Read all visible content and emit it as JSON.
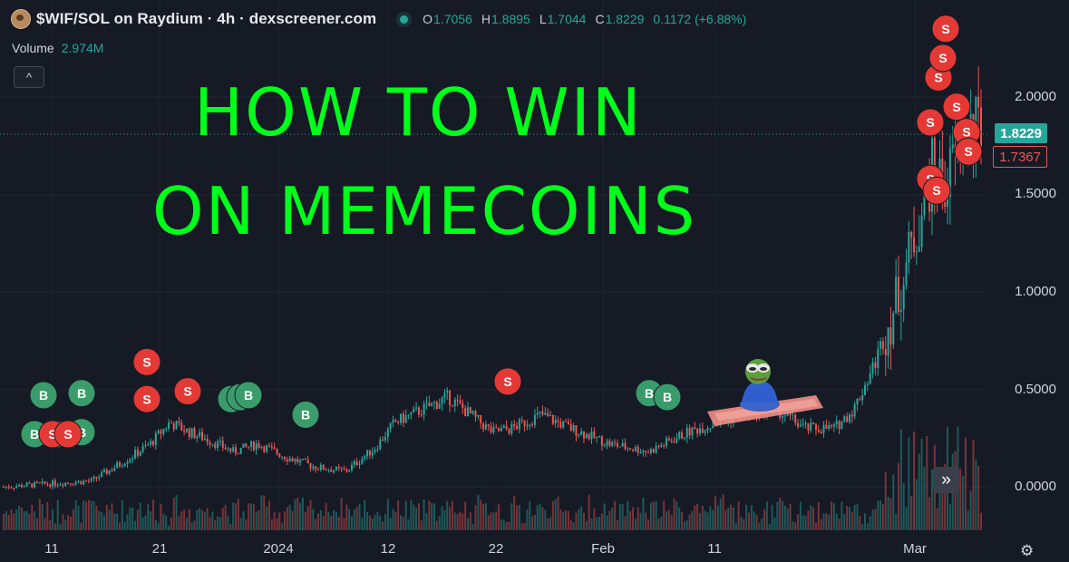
{
  "header": {
    "pair_title": "$WIF/SOL on Raydium · 4h · dexscreener.com",
    "ohlc": [
      {
        "key": "O",
        "value": "1.7056"
      },
      {
        "key": "H",
        "value": "1.8895"
      },
      {
        "key": "L",
        "value": "1.7044"
      },
      {
        "key": "C",
        "value": "1.8229"
      }
    ],
    "change": "0.1172 (+6.88%)",
    "volume_label": "Volume",
    "volume_value": "2.974M",
    "collapse_icon": "^"
  },
  "overlay_text": {
    "line1": "HOW TO WIN",
    "line2": "ON MEMECOINS"
  },
  "price_tags": {
    "last": "1.8229",
    "marker": "1.7367"
  },
  "controls": {
    "scroll_to_latest_icon": "»",
    "settings_icon": "⚙"
  },
  "colors": {
    "background": "#161a25",
    "up": "#26a69a",
    "down": "#ef5350",
    "headline": "#00ff1a",
    "buy_marker": "#3a9c6a",
    "sell_marker": "#e53935"
  },
  "chart_data": {
    "type": "candlestick",
    "title": "$WIF/SOL on Raydium · 4h · dexscreener.com",
    "interval": "4h",
    "y_ticks": [
      "2.0000",
      "1.5000",
      "1.0000",
      "0.5000",
      "0.0000"
    ],
    "x_ticks": [
      "11",
      "21",
      "2024",
      "12",
      "22",
      "Feb",
      "11",
      "Mar"
    ],
    "ylim": [
      -0.1,
      2.45
    ],
    "last_price": 1.8229,
    "grid": true,
    "price_path": [
      {
        "t": 0.0,
        "p": 0.0
      },
      {
        "t": 0.06,
        "p": 0.02
      },
      {
        "t": 0.09,
        "p": 0.03
      },
      {
        "t": 0.12,
        "p": 0.12
      },
      {
        "t": 0.15,
        "p": 0.22
      },
      {
        "t": 0.17,
        "p": 0.33
      },
      {
        "t": 0.19,
        "p": 0.28
      },
      {
        "t": 0.21,
        "p": 0.24
      },
      {
        "t": 0.235,
        "p": 0.18
      },
      {
        "t": 0.26,
        "p": 0.22
      },
      {
        "t": 0.29,
        "p": 0.15
      },
      {
        "t": 0.32,
        "p": 0.1
      },
      {
        "t": 0.35,
        "p": 0.08
      },
      {
        "t": 0.38,
        "p": 0.2
      },
      {
        "t": 0.4,
        "p": 0.33
      },
      {
        "t": 0.43,
        "p": 0.4
      },
      {
        "t": 0.455,
        "p": 0.46
      },
      {
        "t": 0.47,
        "p": 0.4
      },
      {
        "t": 0.5,
        "p": 0.28
      },
      {
        "t": 0.52,
        "p": 0.3
      },
      {
        "t": 0.55,
        "p": 0.37
      },
      {
        "t": 0.58,
        "p": 0.3
      },
      {
        "t": 0.62,
        "p": 0.22
      },
      {
        "t": 0.66,
        "p": 0.18
      },
      {
        "t": 0.7,
        "p": 0.28
      },
      {
        "t": 0.73,
        "p": 0.33
      },
      {
        "t": 0.76,
        "p": 0.38
      },
      {
        "t": 0.79,
        "p": 0.4
      },
      {
        "t": 0.82,
        "p": 0.3
      },
      {
        "t": 0.85,
        "p": 0.3
      },
      {
        "t": 0.87,
        "p": 0.4
      },
      {
        "t": 0.89,
        "p": 0.62
      },
      {
        "t": 0.91,
        "p": 0.9
      },
      {
        "t": 0.93,
        "p": 1.25
      },
      {
        "t": 0.95,
        "p": 1.62
      },
      {
        "t": 0.965,
        "p": 1.55
      },
      {
        "t": 0.98,
        "p": 1.82
      },
      {
        "t": 1.0,
        "p": 1.82
      }
    ],
    "buy_markers": [
      {
        "p": 0.47
      },
      {
        "p": 0.48
      },
      {
        "p": 0.27
      },
      {
        "p": 0.28
      },
      {
        "p": 0.27
      },
      {
        "p": 0.45
      },
      {
        "p": 0.46
      },
      {
        "p": 0.47
      },
      {
        "p": 0.37
      },
      {
        "p": 0.48
      },
      {
        "p": 0.46
      }
    ],
    "sell_markers": [
      {
        "p": 0.27
      },
      {
        "p": 0.27
      },
      {
        "p": 0.64
      },
      {
        "p": 0.45
      },
      {
        "p": 0.49
      },
      {
        "p": 0.54
      },
      {
        "p": 1.82
      },
      {
        "p": 1.72
      },
      {
        "p": 1.58
      },
      {
        "p": 1.52
      },
      {
        "p": 1.87
      },
      {
        "p": 1.95
      },
      {
        "p": 2.1
      },
      {
        "p": 2.2
      },
      {
        "p": 2.35
      }
    ]
  }
}
